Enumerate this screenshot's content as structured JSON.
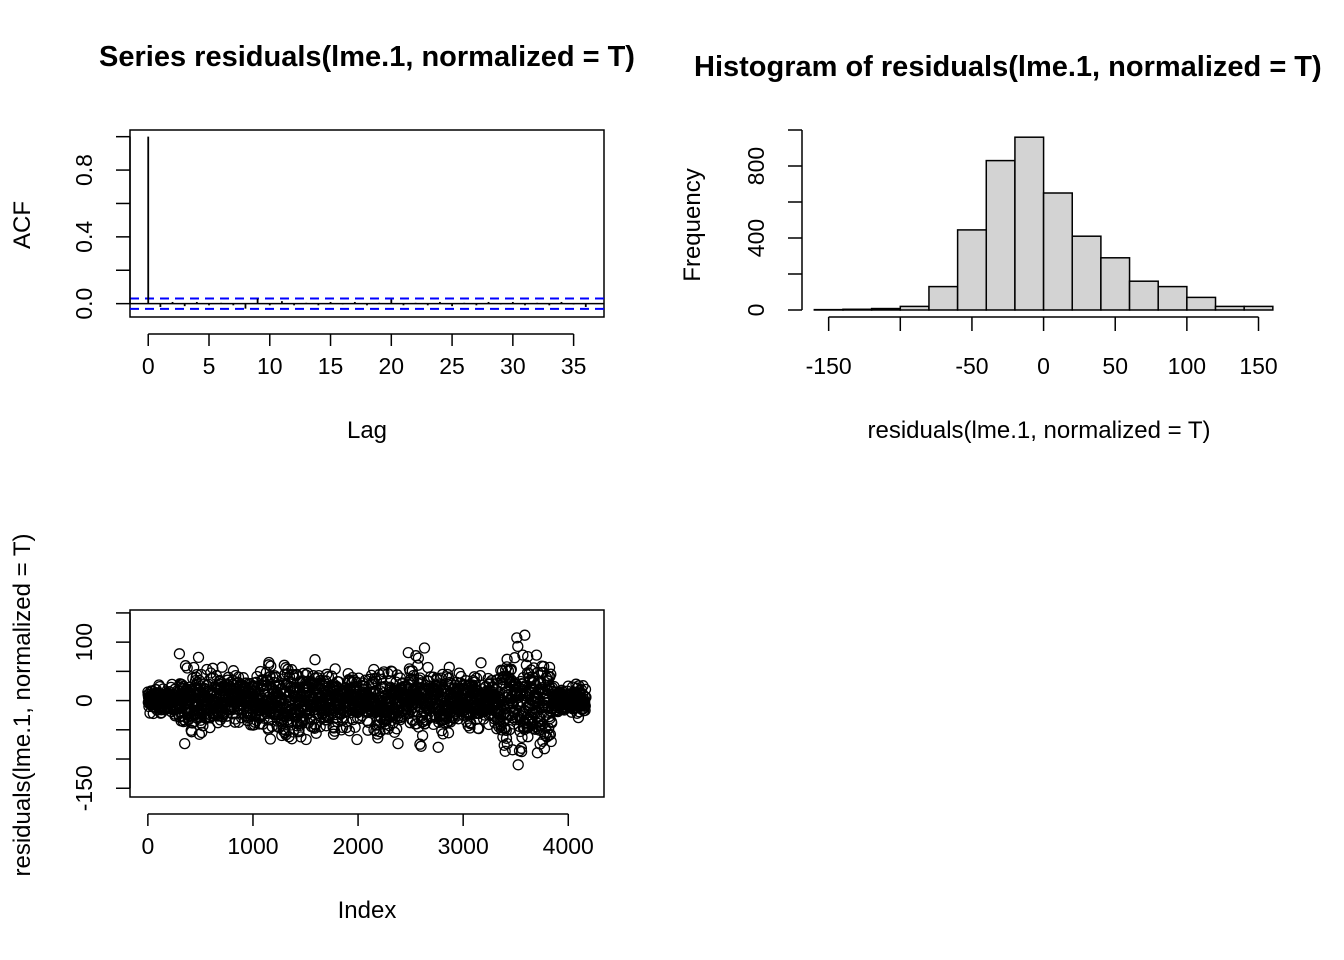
{
  "acf_panel": {
    "title": "Series  residuals(lme.1, normalized = T)",
    "xlabel": "Lag",
    "ylabel": "ACF",
    "x_ticks": [
      "0",
      "5",
      "10",
      "15",
      "20",
      "25",
      "30",
      "35"
    ],
    "y_ticks": [
      "0.0",
      "0.4",
      "0.8"
    ]
  },
  "hist_panel": {
    "title": "Histogram of residuals(lme.1, normalized = T)",
    "xlabel": "residuals(lme.1, normalized = T)",
    "ylabel": "Frequency",
    "x_ticks": [
      "-150",
      "-50",
      "0",
      "50",
      "100",
      "150"
    ],
    "y_ticks": [
      "0",
      "400",
      "800"
    ]
  },
  "index_panel": {
    "xlabel": "Index",
    "ylabel": "residuals(lme.1, normalized = T)",
    "x_ticks": [
      "0",
      "1000",
      "2000",
      "3000",
      "4000"
    ],
    "y_ticks": [
      "-150",
      "0",
      "100"
    ]
  },
  "chart_data": [
    {
      "type": "bar",
      "kind": "acf",
      "x": [
        0,
        1,
        2,
        3,
        4,
        5,
        6,
        7,
        8,
        9,
        10,
        11,
        12,
        13,
        14,
        15,
        16,
        17,
        18,
        19,
        20,
        21,
        22,
        23,
        24,
        25,
        26,
        27,
        28,
        29,
        30,
        31,
        32,
        33,
        34,
        35,
        36
      ],
      "values": [
        1.0,
        -0.02,
        0.01,
        -0.015,
        0.01,
        -0.01,
        0.005,
        -0.01,
        -0.03,
        0.03,
        -0.01,
        0.015,
        -0.01,
        0.005,
        -0.01,
        0.01,
        -0.005,
        0.01,
        -0.01,
        0.005,
        0.025,
        -0.01,
        0.005,
        -0.01,
        0.01,
        -0.015,
        0.005,
        -0.01,
        0.01,
        -0.005,
        0.01,
        -0.01,
        0.005,
        -0.01,
        0.01,
        -0.005,
        -0.02
      ],
      "confidence_band": [
        -0.031,
        0.031
      ],
      "confidence_color": "#0000ff",
      "xlim": [
        -1.5,
        37.5
      ],
      "ylim": [
        -0.08,
        1.04
      ],
      "grid": false
    },
    {
      "type": "bar",
      "kind": "histogram",
      "bin_edges": [
        -160,
        -140,
        -120,
        -100,
        -80,
        -60,
        -40,
        -20,
        0,
        20,
        40,
        60,
        80,
        100,
        120,
        140,
        160
      ],
      "values": [
        2,
        4,
        8,
        20,
        130,
        445,
        830,
        960,
        650,
        410,
        290,
        160,
        130,
        70,
        20,
        20
      ],
      "bar_color": "#d3d3d3",
      "xlim": [
        -170,
        165
      ],
      "ylim": [
        0,
        1000
      ],
      "grid": false
    },
    {
      "type": "scatter",
      "kind": "index_plot",
      "n": 4170,
      "xlim": [
        -170,
        4340
      ],
      "ylim": [
        -165,
        155
      ],
      "marker": "open-circle",
      "grid": false
    }
  ]
}
